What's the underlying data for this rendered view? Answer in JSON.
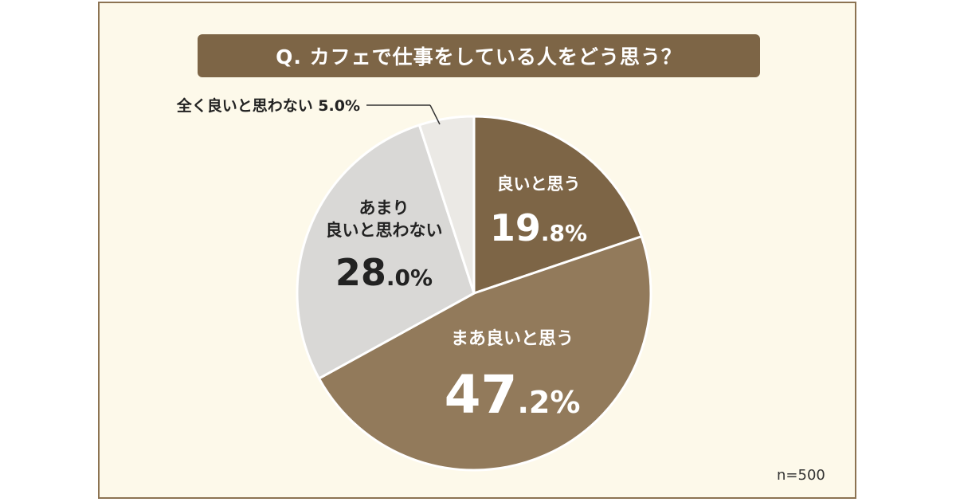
{
  "title": "Q. カフェで仕事をしている人をどう思う？",
  "footnote": "n=500",
  "chart_data": {
    "type": "pie",
    "title": "Q. カフェで仕事をしている人をどう思う？",
    "slices": [
      {
        "label": "良いと思う",
        "label_lines": [
          "良いと思う"
        ],
        "int": "19",
        "dec": ".8%",
        "value": 19.8,
        "color": "#7d6546",
        "text_color": "#ffffff"
      },
      {
        "label": "まあ良いと思う",
        "label_lines": [
          "まあ良いと思う"
        ],
        "int": "47",
        "dec": ".2%",
        "value": 47.2,
        "color": "#927a5b",
        "text_color": "#ffffff"
      },
      {
        "label": "あまり良いと思わない",
        "label_lines": [
          "あまり",
          "良いと思わない"
        ],
        "int": "28",
        "dec": ".0%",
        "value": 28.0,
        "color": "#d9d8d6",
        "text_color": "#222222"
      },
      {
        "label": "全く良いと思わない",
        "callout": "全く良いと思わない 5.0%",
        "value": 5.0,
        "color": "#ebe9e5",
        "text_color": "#222222"
      }
    ]
  }
}
